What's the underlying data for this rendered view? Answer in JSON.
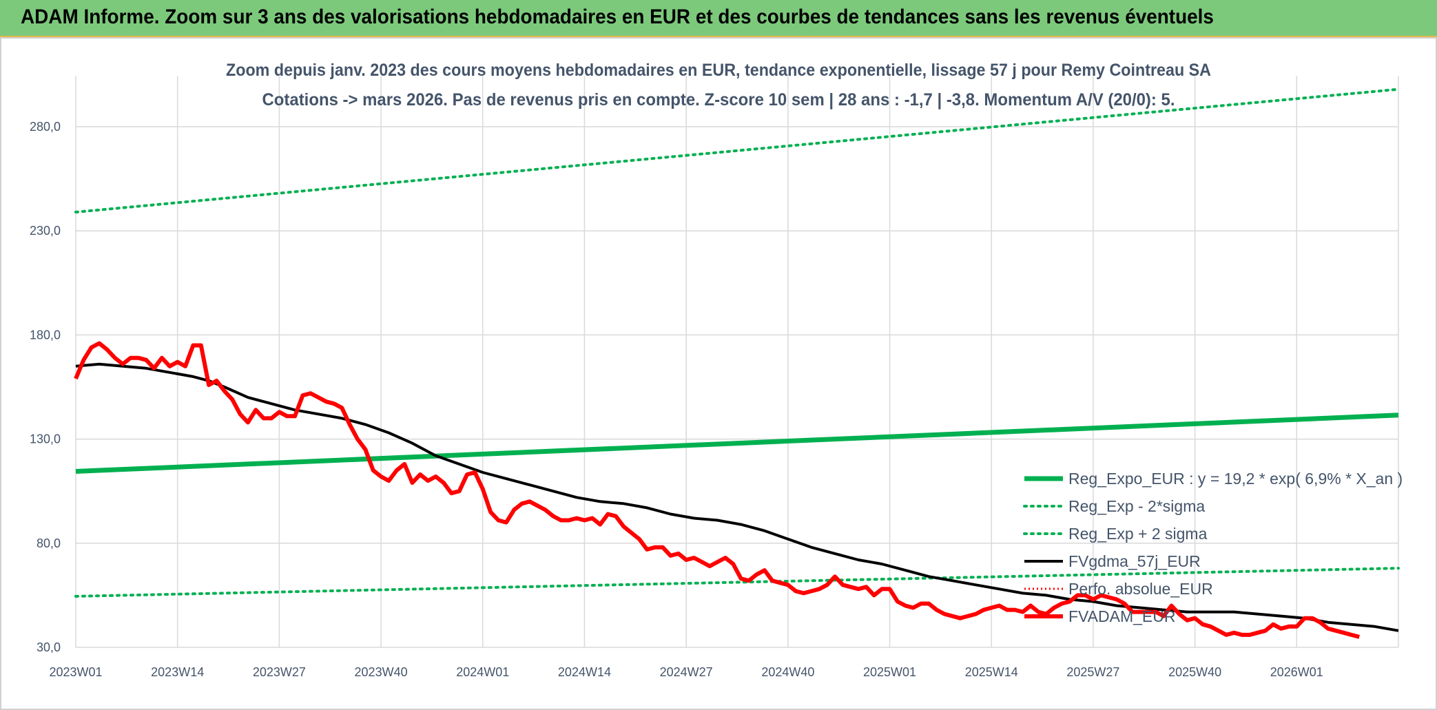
{
  "banner": {
    "title": "ADAM Informe. Zoom sur 3 ans des valorisations hebdomadaires en EUR et des courbes de tendances sans les revenus éventuels"
  },
  "colors": {
    "reg_expo": "#00b050",
    "reg_band": "#00b050",
    "gdma": "#000000",
    "perfo": "#ff0000",
    "adam": "#ff0000",
    "grid": "#d9d9d9",
    "text": "#44546a"
  },
  "chart_data": {
    "type": "line",
    "title": "Zoom depuis janv. 2023 des cours moyens hebdomadaires en EUR, tendance exponentielle, lissage 57 j pour Remy Cointreau SA",
    "subtitle": "Cotations -> mars 2026. Pas de revenus pris en compte. Z-score 10 sem | 28 ans : -1,7 | -3,8. Momentum A/V (20/0): 5.",
    "xlabel": "",
    "ylabel": "",
    "ylim": [
      30,
      280
    ],
    "y_ticks": [
      "30,0",
      "80,0",
      "130,0",
      "180,0",
      "230,0",
      "280,0"
    ],
    "x_ticks": [
      "2023W01",
      "2023W14",
      "2023W27",
      "2023W40",
      "2024W01",
      "2024W14",
      "2024W27",
      "2024W40",
      "2025W01",
      "2025W14",
      "2025W27",
      "2025W40",
      "2026W01"
    ],
    "n_weeks": 170,
    "grid": true,
    "legend_position": "right",
    "series": [
      {
        "name": "Reg_Expo_EUR : y = 19,2 * exp( 6,9% *  X_an )",
        "style": "thick",
        "values": [
          [
            0,
            114.5
          ],
          [
            169,
            141.5
          ]
        ]
      },
      {
        "name": "Reg_Exp - 2*sigma",
        "style": "dotted",
        "values": [
          [
            0,
            54.5
          ],
          [
            169,
            68
          ]
        ]
      },
      {
        "name": "Reg_Exp + 2 sigma",
        "style": "dotted",
        "values": [
          [
            0,
            239
          ],
          [
            169,
            298
          ]
        ]
      },
      {
        "name": "FVgdma_57j_EUR",
        "style": "medium",
        "values": [
          [
            0,
            165
          ],
          [
            3,
            166
          ],
          [
            6,
            165
          ],
          [
            9,
            164
          ],
          [
            12,
            162
          ],
          [
            15,
            160
          ],
          [
            17,
            158
          ],
          [
            19,
            155
          ],
          [
            22,
            150
          ],
          [
            25,
            147
          ],
          [
            28,
            144
          ],
          [
            31,
            142
          ],
          [
            34,
            140
          ],
          [
            37,
            137
          ],
          [
            40,
            133
          ],
          [
            43,
            128
          ],
          [
            46,
            122
          ],
          [
            49,
            118
          ],
          [
            52,
            114
          ],
          [
            55,
            111
          ],
          [
            58,
            108
          ],
          [
            61,
            105
          ],
          [
            64,
            102
          ],
          [
            67,
            100
          ],
          [
            70,
            99
          ],
          [
            73,
            97
          ],
          [
            76,
            94
          ],
          [
            79,
            92
          ],
          [
            82,
            91
          ],
          [
            85,
            89
          ],
          [
            88,
            86
          ],
          [
            91,
            82
          ],
          [
            94,
            78
          ],
          [
            97,
            75
          ],
          [
            100,
            72
          ],
          [
            103,
            70
          ],
          [
            106,
            67
          ],
          [
            109,
            64
          ],
          [
            112,
            62
          ],
          [
            115,
            60
          ],
          [
            118,
            58
          ],
          [
            121,
            56
          ],
          [
            124,
            55
          ],
          [
            127,
            53
          ],
          [
            130,
            52
          ],
          [
            133,
            50
          ],
          [
            136,
            49
          ],
          [
            139,
            48
          ],
          [
            142,
            47
          ],
          [
            145,
            47
          ],
          [
            148,
            47
          ],
          [
            151,
            46
          ],
          [
            154,
            45
          ],
          [
            157,
            44
          ],
          [
            160,
            42
          ],
          [
            163,
            41
          ],
          [
            166,
            40
          ],
          [
            169,
            38
          ]
        ]
      },
      {
        "name": "Perfo. absolue_EUR",
        "style": "red-dotted",
        "values": []
      },
      {
        "name": "FVADAM_EUR",
        "style": "thick-red",
        "values": [
          [
            0,
            159
          ],
          [
            1,
            168
          ],
          [
            2,
            174
          ],
          [
            3,
            176
          ],
          [
            4,
            173
          ],
          [
            5,
            169
          ],
          [
            6,
            166
          ],
          [
            7,
            169
          ],
          [
            8,
            169
          ],
          [
            9,
            168
          ],
          [
            10,
            164
          ],
          [
            11,
            169
          ],
          [
            12,
            165
          ],
          [
            13,
            167
          ],
          [
            14,
            165
          ],
          [
            15,
            175
          ],
          [
            16,
            175
          ],
          [
            17,
            156
          ],
          [
            18,
            158
          ],
          [
            19,
            153
          ],
          [
            20,
            149
          ],
          [
            21,
            142
          ],
          [
            22,
            138
          ],
          [
            23,
            144
          ],
          [
            24,
            140
          ],
          [
            25,
            140
          ],
          [
            26,
            143
          ],
          [
            27,
            141
          ],
          [
            28,
            141
          ],
          [
            29,
            151
          ],
          [
            30,
            152
          ],
          [
            31,
            150
          ],
          [
            32,
            148
          ],
          [
            33,
            147
          ],
          [
            34,
            145
          ],
          [
            35,
            137
          ],
          [
            36,
            130
          ],
          [
            37,
            125
          ],
          [
            38,
            115
          ],
          [
            39,
            112
          ],
          [
            40,
            110
          ],
          [
            41,
            115
          ],
          [
            42,
            118
          ],
          [
            43,
            109
          ],
          [
            44,
            113
          ],
          [
            45,
            110
          ],
          [
            46,
            112
          ],
          [
            47,
            109
          ],
          [
            48,
            104
          ],
          [
            49,
            105
          ],
          [
            50,
            113
          ],
          [
            51,
            114
          ],
          [
            52,
            106
          ],
          [
            53,
            95
          ],
          [
            54,
            91
          ],
          [
            55,
            90
          ],
          [
            56,
            96
          ],
          [
            57,
            99
          ],
          [
            58,
            100
          ],
          [
            59,
            98
          ],
          [
            60,
            96
          ],
          [
            61,
            93
          ],
          [
            62,
            91
          ],
          [
            63,
            91
          ],
          [
            64,
            92
          ],
          [
            65,
            91
          ],
          [
            66,
            92
          ],
          [
            67,
            89
          ],
          [
            68,
            94
          ],
          [
            69,
            93
          ],
          [
            70,
            88
          ],
          [
            71,
            85
          ],
          [
            72,
            82
          ],
          [
            73,
            77
          ],
          [
            74,
            78
          ],
          [
            75,
            78
          ],
          [
            76,
            74
          ],
          [
            77,
            75
          ],
          [
            78,
            72
          ],
          [
            79,
            73
          ],
          [
            80,
            71
          ],
          [
            81,
            69
          ],
          [
            82,
            71
          ],
          [
            83,
            73
          ],
          [
            84,
            70
          ],
          [
            85,
            63
          ],
          [
            86,
            62
          ],
          [
            87,
            65
          ],
          [
            88,
            67
          ],
          [
            89,
            62
          ],
          [
            90,
            61
          ],
          [
            91,
            60
          ],
          [
            92,
            57
          ],
          [
            93,
            56
          ],
          [
            94,
            57
          ],
          [
            95,
            58
          ],
          [
            96,
            60
          ],
          [
            97,
            64
          ],
          [
            98,
            60
          ],
          [
            99,
            59
          ],
          [
            100,
            58
          ],
          [
            101,
            59
          ],
          [
            102,
            55
          ],
          [
            103,
            58
          ],
          [
            104,
            58
          ],
          [
            105,
            52
          ],
          [
            106,
            50
          ],
          [
            107,
            49
          ],
          [
            108,
            51
          ],
          [
            109,
            51
          ],
          [
            110,
            48
          ],
          [
            111,
            46
          ],
          [
            112,
            45
          ],
          [
            113,
            44
          ],
          [
            114,
            45
          ],
          [
            115,
            46
          ],
          [
            116,
            48
          ],
          [
            117,
            49
          ],
          [
            118,
            50
          ],
          [
            119,
            48
          ],
          [
            120,
            48
          ],
          [
            121,
            47
          ],
          [
            122,
            50
          ],
          [
            123,
            47
          ],
          [
            124,
            46
          ],
          [
            125,
            49
          ],
          [
            126,
            51
          ],
          [
            127,
            52
          ],
          [
            128,
            55
          ],
          [
            129,
            55
          ],
          [
            130,
            53
          ],
          [
            131,
            55
          ],
          [
            132,
            54
          ],
          [
            133,
            53
          ],
          [
            134,
            51
          ],
          [
            135,
            47
          ],
          [
            136,
            47
          ],
          [
            137,
            47
          ],
          [
            138,
            47
          ],
          [
            139,
            45
          ],
          [
            140,
            50
          ],
          [
            141,
            46
          ],
          [
            142,
            43
          ],
          [
            143,
            44
          ],
          [
            144,
            41
          ],
          [
            145,
            40
          ],
          [
            146,
            38
          ],
          [
            147,
            36
          ],
          [
            148,
            37
          ],
          [
            149,
            36
          ],
          [
            150,
            36
          ],
          [
            151,
            37
          ],
          [
            152,
            38
          ],
          [
            153,
            41
          ],
          [
            154,
            39
          ],
          [
            155,
            40
          ],
          [
            156,
            40
          ],
          [
            157,
            44
          ],
          [
            158,
            44
          ],
          [
            159,
            42
          ],
          [
            160,
            39
          ],
          [
            161,
            38
          ],
          [
            162,
            37
          ],
          [
            163,
            36
          ],
          [
            164,
            35
          ]
        ]
      }
    ]
  }
}
